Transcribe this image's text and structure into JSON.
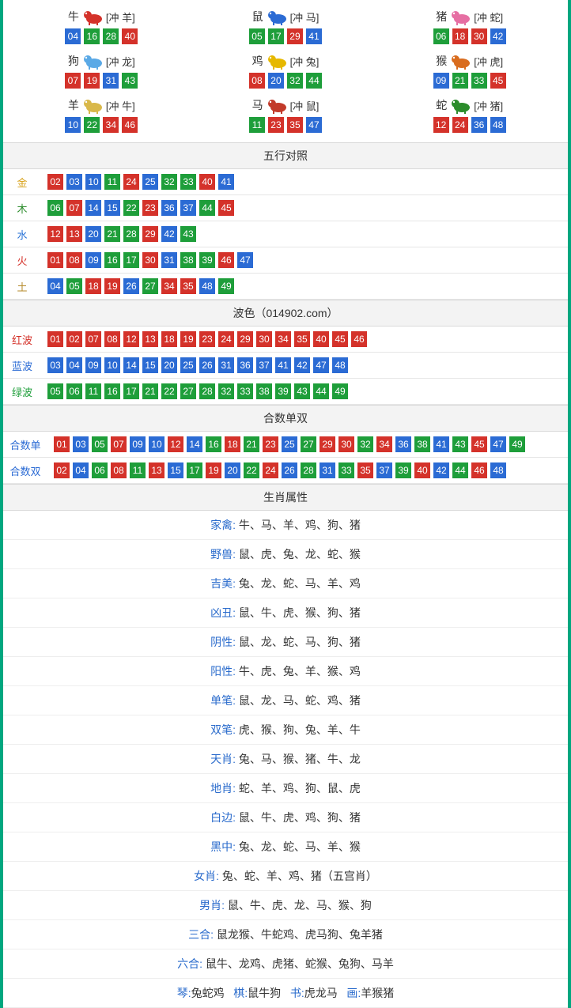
{
  "colors": {
    "red": "#d4322a",
    "blue": "#2b6bd4",
    "green": "#1e9e3a",
    "frame": "#00a77f",
    "jin": "#d8a21a",
    "mu": "#2b8c2b",
    "shui": "#2671d6",
    "huo": "#d4322a",
    "tu": "#b58a2a",
    "hongbo": "#d4322a",
    "lanbo": "#2b6bd4",
    "lvbo": "#1e9e3a",
    "heshu": "#2b6bd4"
  },
  "ball_color_map": {
    "red": [
      "01",
      "02",
      "07",
      "08",
      "12",
      "13",
      "18",
      "19",
      "23",
      "24",
      "29",
      "30",
      "34",
      "35",
      "40",
      "45",
      "46"
    ],
    "blue": [
      "03",
      "04",
      "09",
      "10",
      "14",
      "15",
      "20",
      "25",
      "26",
      "31",
      "36",
      "37",
      "41",
      "42",
      "47",
      "48"
    ],
    "green": [
      "05",
      "06",
      "11",
      "16",
      "17",
      "21",
      "22",
      "27",
      "28",
      "32",
      "33",
      "38",
      "39",
      "43",
      "44",
      "49"
    ]
  },
  "zodiac": [
    {
      "name": "牛",
      "chong": "冲 羊",
      "icon_color": "#d4322a",
      "nums": [
        "04",
        "16",
        "28",
        "40"
      ]
    },
    {
      "name": "鼠",
      "chong": "冲 马",
      "icon_color": "#2b6bd4",
      "nums": [
        "05",
        "17",
        "29",
        "41"
      ]
    },
    {
      "name": "猪",
      "chong": "冲 蛇",
      "icon_color": "#e66fa3",
      "nums": [
        "06",
        "18",
        "30",
        "42"
      ]
    },
    {
      "name": "狗",
      "chong": "冲 龙",
      "icon_color": "#5aa9e6",
      "nums": [
        "07",
        "19",
        "31",
        "43"
      ]
    },
    {
      "name": "鸡",
      "chong": "冲 兔",
      "icon_color": "#e6b800",
      "nums": [
        "08",
        "20",
        "32",
        "44"
      ]
    },
    {
      "name": "猴",
      "chong": "冲 虎",
      "icon_color": "#d96c1e",
      "nums": [
        "09",
        "21",
        "33",
        "45"
      ]
    },
    {
      "name": "羊",
      "chong": "冲 牛",
      "icon_color": "#d9b84a",
      "nums": [
        "10",
        "22",
        "34",
        "46"
      ]
    },
    {
      "name": "马",
      "chong": "冲 鼠",
      "icon_color": "#c23a2a",
      "nums": [
        "11",
        "23",
        "35",
        "47"
      ]
    },
    {
      "name": "蛇",
      "chong": "冲 猪",
      "icon_color": "#2b8c2b",
      "nums": [
        "12",
        "24",
        "36",
        "48"
      ]
    }
  ],
  "wuxing": {
    "title": "五行对照",
    "rows": [
      {
        "label": "金",
        "label_color_key": "jin",
        "nums": [
          "02",
          "03",
          "10",
          "11",
          "24",
          "25",
          "32",
          "33",
          "40",
          "41"
        ]
      },
      {
        "label": "木",
        "label_color_key": "mu",
        "nums": [
          "06",
          "07",
          "14",
          "15",
          "22",
          "23",
          "36",
          "37",
          "44",
          "45"
        ]
      },
      {
        "label": "水",
        "label_color_key": "shui",
        "nums": [
          "12",
          "13",
          "20",
          "21",
          "28",
          "29",
          "42",
          "43"
        ]
      },
      {
        "label": "火",
        "label_color_key": "huo",
        "nums": [
          "01",
          "08",
          "09",
          "16",
          "17",
          "30",
          "31",
          "38",
          "39",
          "46",
          "47"
        ]
      },
      {
        "label": "土",
        "label_color_key": "tu",
        "nums": [
          "04",
          "05",
          "18",
          "19",
          "26",
          "27",
          "34",
          "35",
          "48",
          "49"
        ]
      }
    ]
  },
  "bose": {
    "title": "波色（014902.com）",
    "rows": [
      {
        "label": "红波",
        "label_color_key": "hongbo",
        "nums": [
          "01",
          "02",
          "07",
          "08",
          "12",
          "13",
          "18",
          "19",
          "23",
          "24",
          "29",
          "30",
          "34",
          "35",
          "40",
          "45",
          "46"
        ]
      },
      {
        "label": "蓝波",
        "label_color_key": "lanbo",
        "nums": [
          "03",
          "04",
          "09",
          "10",
          "14",
          "15",
          "20",
          "25",
          "26",
          "31",
          "36",
          "37",
          "41",
          "42",
          "47",
          "48"
        ]
      },
      {
        "label": "绿波",
        "label_color_key": "lvbo",
        "nums": [
          "05",
          "06",
          "11",
          "16",
          "17",
          "21",
          "22",
          "27",
          "28",
          "32",
          "33",
          "38",
          "39",
          "43",
          "44",
          "49"
        ]
      }
    ]
  },
  "heshu": {
    "title": "合数单双",
    "rows": [
      {
        "label": "合数单",
        "label_color_key": "heshu",
        "nums": [
          "01",
          "03",
          "05",
          "07",
          "09",
          "10",
          "12",
          "14",
          "16",
          "18",
          "21",
          "23",
          "25",
          "27",
          "29",
          "30",
          "32",
          "34",
          "36",
          "38",
          "41",
          "43",
          "45",
          "47",
          "49"
        ]
      },
      {
        "label": "合数双",
        "label_color_key": "heshu",
        "nums": [
          "02",
          "04",
          "06",
          "08",
          "11",
          "13",
          "15",
          "17",
          "19",
          "20",
          "22",
          "24",
          "26",
          "28",
          "31",
          "33",
          "35",
          "37",
          "39",
          "40",
          "42",
          "44",
          "46",
          "48"
        ]
      }
    ]
  },
  "shengxiao": {
    "title": "生肖属性",
    "rows": [
      {
        "label": "家禽",
        "text": "牛、马、羊、鸡、狗、猪"
      },
      {
        "label": "野兽",
        "text": "鼠、虎、兔、龙、蛇、猴"
      },
      {
        "label": "吉美",
        "text": "兔、龙、蛇、马、羊、鸡"
      },
      {
        "label": "凶丑",
        "text": "鼠、牛、虎、猴、狗、猪"
      },
      {
        "label": "阴性",
        "text": "鼠、龙、蛇、马、狗、猪"
      },
      {
        "label": "阳性",
        "text": "牛、虎、兔、羊、猴、鸡"
      },
      {
        "label": "单笔",
        "text": "鼠、龙、马、蛇、鸡、猪"
      },
      {
        "label": "双笔",
        "text": "虎、猴、狗、兔、羊、牛"
      },
      {
        "label": "天肖",
        "text": "兔、马、猴、猪、牛、龙"
      },
      {
        "label": "地肖",
        "text": "蛇、羊、鸡、狗、鼠、虎"
      },
      {
        "label": "白边",
        "text": "鼠、牛、虎、鸡、狗、猪"
      },
      {
        "label": "黑中",
        "text": "兔、龙、蛇、马、羊、猴"
      },
      {
        "label": "女肖",
        "text": "兔、蛇、羊、鸡、猪（五宫肖）"
      },
      {
        "label": "男肖",
        "text": "鼠、牛、虎、龙、马、猴、狗"
      },
      {
        "label": "三合",
        "text": "鼠龙猴、牛蛇鸡、虎马狗、兔羊猪"
      },
      {
        "label": "六合",
        "text": "鼠牛、龙鸡、虎猪、蛇猴、兔狗、马羊"
      }
    ],
    "last_row": {
      "pairs": [
        {
          "k": "琴",
          "v": "兔蛇鸡"
        },
        {
          "k": "棋",
          "v": "鼠牛狗"
        },
        {
          "k": "书",
          "v": "虎龙马"
        },
        {
          "k": "画",
          "v": "羊猴猪"
        }
      ]
    }
  }
}
